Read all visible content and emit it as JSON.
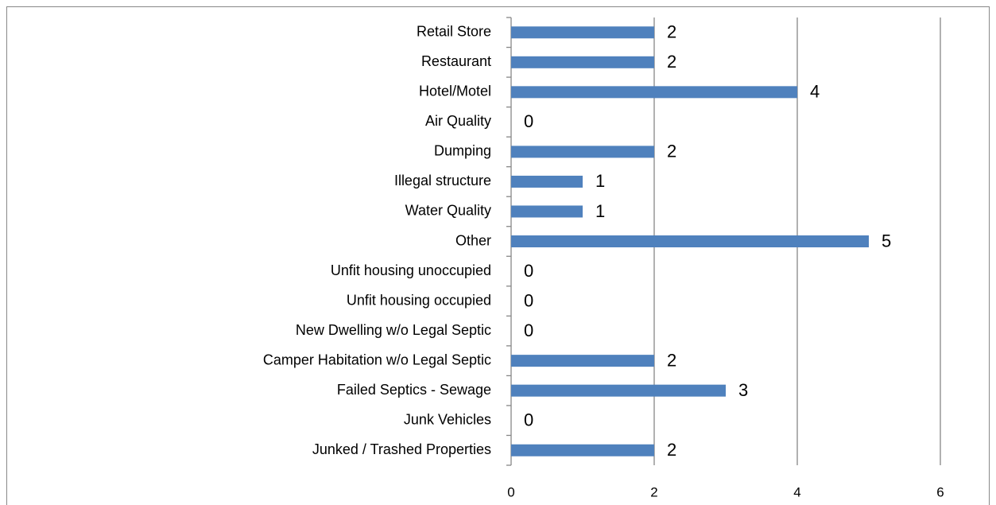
{
  "chart_data": {
    "type": "bar",
    "orientation": "horizontal",
    "categories": [
      "Retail Store",
      "Restaurant",
      "Hotel/Motel",
      "Air Quality",
      "Dumping",
      "Illegal structure",
      "Water Quality",
      "Other",
      "Unfit housing unoccupied",
      "Unfit housing occupied",
      "New Dwelling w/o Legal Septic",
      "Camper Habitation w/o Legal Septic",
      "Failed Septics - Sewage",
      "Junk Vehicles",
      "Junked / Trashed Properties"
    ],
    "values": [
      2,
      2,
      4,
      0,
      2,
      1,
      1,
      5,
      0,
      0,
      0,
      2,
      3,
      0,
      2
    ],
    "color": "#4f81bd",
    "xlim": [
      0,
      6
    ],
    "xticks": [
      0,
      2,
      4,
      6
    ],
    "grid": true
  }
}
